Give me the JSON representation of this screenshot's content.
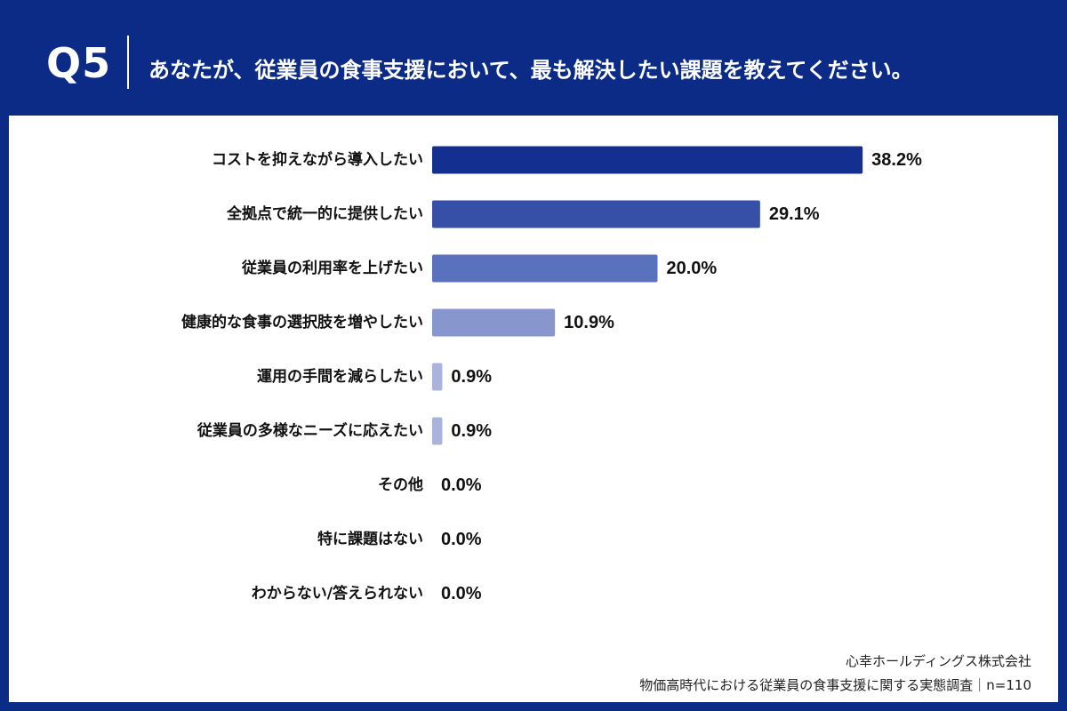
{
  "header": {
    "question_number": "Q5",
    "question_text": "あなたが、従業員の食事支援において、最も解決したい課題を教えてください。"
  },
  "footer": {
    "organization": "心幸ホールディングス株式会社",
    "source": "物価高時代における従業員の食事支援に関する実態調査｜n=110"
  },
  "colors": {
    "header_bg": "#0b2b86",
    "panel_bg": "#ffffff",
    "text": "#111111"
  },
  "chart_data": {
    "type": "bar",
    "orientation": "horizontal",
    "categories": [
      "コストを抑えながら導入したい",
      "全拠点で統一的に提供したい",
      "従業員の利用率を上げたい",
      "健康的な食事の選択肢を増やしたい",
      "運用の手間を減らしたい",
      "従業員の多様なニーズに応えたい",
      "その他",
      "特に課題はない",
      "わからない/答えられない"
    ],
    "values": [
      38.2,
      29.1,
      20.0,
      10.9,
      0.9,
      0.9,
      0.0,
      0.0,
      0.0
    ],
    "value_labels": [
      "38.2%",
      "29.1%",
      "20.0%",
      "10.9%",
      "0.9%",
      "0.9%",
      "0.0%",
      "0.0%",
      "0.0%"
    ],
    "bar_colors": [
      "#132f8f",
      "#3550a6",
      "#5a72bd",
      "#8796cd",
      "#aab3dd",
      "#aab3dd",
      "#aab3dd",
      "#aab3dd",
      "#aab3dd"
    ],
    "xlim": [
      0,
      40
    ],
    "grid": false,
    "legend": "none"
  }
}
